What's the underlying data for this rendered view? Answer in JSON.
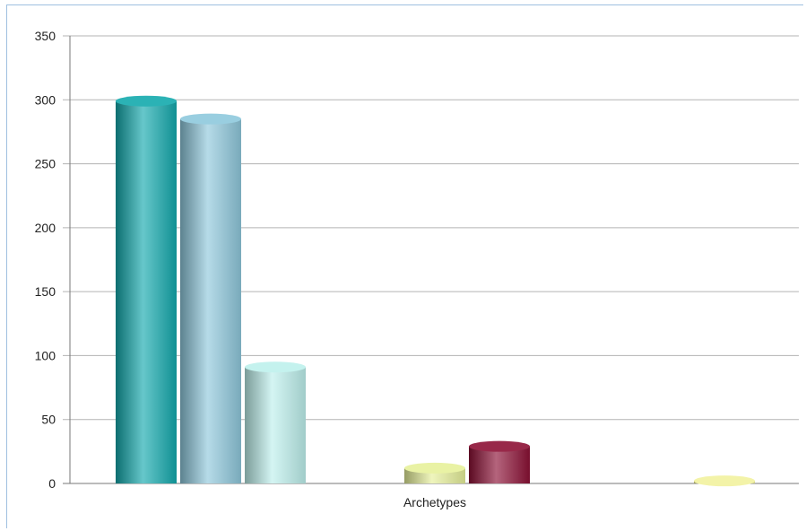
{
  "chart_data": {
    "type": "bar",
    "categories": [
      "Archetypes"
    ],
    "series": [
      {
        "values": [
          299
        ],
        "color": "#13a9ad"
      },
      {
        "values": [
          285
        ],
        "color": "#8ec8dc"
      },
      {
        "values": [
          91
        ],
        "color": "#bdf0ec"
      },
      {
        "values": [
          12
        ],
        "color": "#e6f09a"
      },
      {
        "values": [
          29
        ],
        "color": "#8c1035"
      },
      {
        "values": [
          2
        ],
        "color": "#f2f29e"
      }
    ],
    "yticks": [
      "0",
      "50",
      "100",
      "150",
      "200",
      "250",
      "300",
      "350"
    ],
    "ylim": [
      0,
      350
    ],
    "grid": true,
    "title": "",
    "xlabel": "",
    "ylabel": ""
  }
}
